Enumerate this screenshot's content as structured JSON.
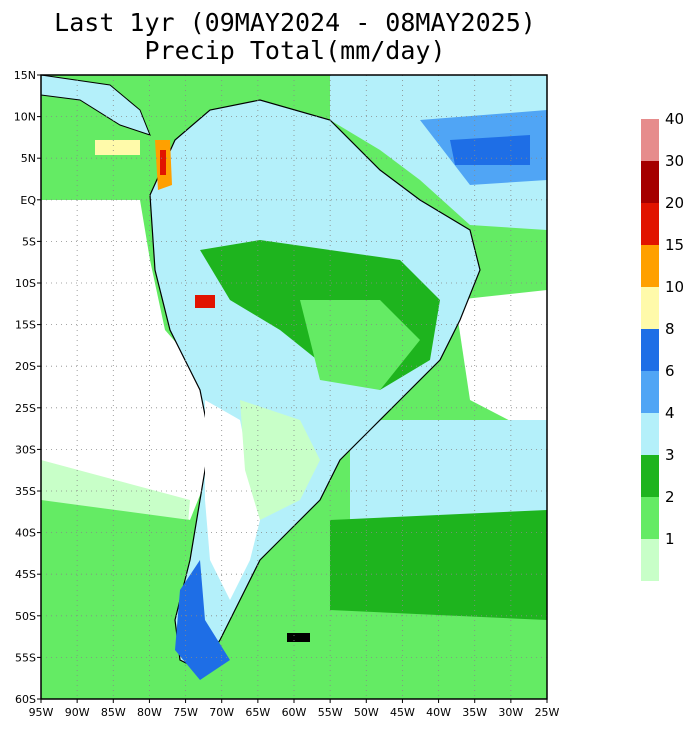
{
  "title": {
    "line1": "Last 1yr (09MAY2024 - 08MAY2025)",
    "line2": "Precip Total(mm/day)"
  },
  "map": {
    "lon_range": [
      -95,
      -25
    ],
    "lat_range": [
      -60,
      15
    ],
    "lat_ticks": [
      "15N",
      "10N",
      "5N",
      "EQ",
      "5S",
      "10S",
      "15S",
      "20S",
      "25S",
      "30S",
      "35S",
      "40S",
      "45S",
      "50S",
      "55S",
      "60S"
    ],
    "lon_ticks": [
      "95W",
      "90W",
      "85W",
      "80W",
      "75W",
      "70W",
      "65W",
      "60W",
      "55W",
      "50W",
      "45W",
      "40W",
      "35W",
      "30W",
      "25W"
    ],
    "grid": true
  },
  "colorbar": {
    "colors": [
      "#c8ffc8",
      "#64eb64",
      "#1eb41e",
      "#b4f0fa",
      "#50a5f5",
      "#1e6ee6",
      "#fffaaa",
      "#ffa000",
      "#e11400",
      "#a50000",
      "#e68c8c"
    ],
    "labels": [
      "1",
      "2",
      "3",
      "4",
      "6",
      "8",
      "10",
      "15",
      "20",
      "30",
      "40"
    ]
  }
}
